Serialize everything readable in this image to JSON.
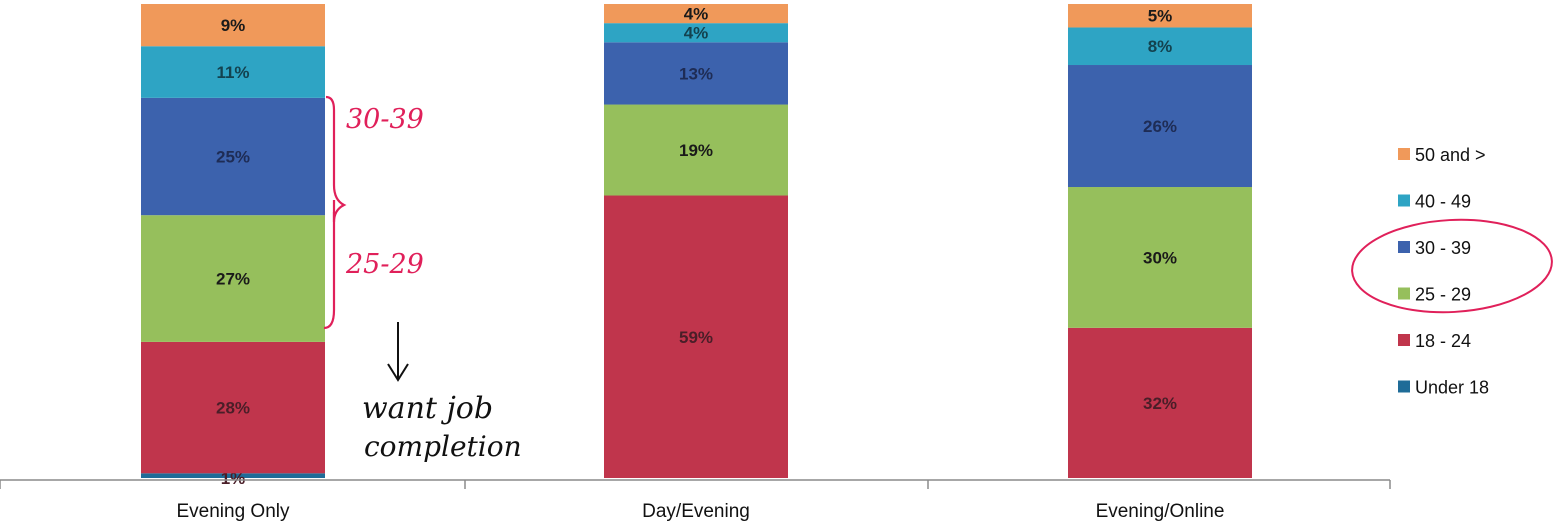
{
  "chart_data": {
    "type": "bar",
    "stacked": true,
    "normalized": true,
    "categories": [
      "Evening Only",
      "Day/Evening",
      "Evening/Online"
    ],
    "series": [
      {
        "name": "Under 18",
        "color": "#1f6c98",
        "values": [
          1,
          0,
          0
        ],
        "labels": [
          "1%",
          "",
          ""
        ]
      },
      {
        "name": "18 - 24",
        "color": "#c0354c",
        "values": [
          28,
          59,
          32
        ],
        "labels": [
          "28%",
          "59%",
          "32%"
        ]
      },
      {
        "name": "25 - 29",
        "color": "#96bf5c",
        "values": [
          27,
          19,
          30
        ],
        "labels": [
          "27%",
          "19%",
          "30%"
        ]
      },
      {
        "name": "30 - 39",
        "color": "#3c62ad",
        "values": [
          25,
          13,
          26
        ],
        "labels": [
          "25%",
          "13%",
          "26%"
        ]
      },
      {
        "name": "40 - 49",
        "color": "#2ea4c4",
        "values": [
          11,
          4,
          8
        ],
        "labels": [
          "11%",
          "4%",
          "8%"
        ]
      },
      {
        "name": "50 and >",
        "color": "#f0995a",
        "values": [
          9,
          4,
          5
        ],
        "labels": [
          "9%",
          "4%",
          "5%"
        ]
      }
    ],
    "legend_order": [
      "50 and >",
      "40 - 49",
      "30 - 39",
      "25 - 29",
      "18 - 24",
      "Under 18"
    ],
    "legend_position": "right",
    "grid": false
  },
  "annotations": {
    "bracket_upper": "30-39",
    "bracket_lower": "25-29",
    "note_line1": "want job",
    "note_line2": "completion",
    "ink_color": "#e0205a"
  }
}
